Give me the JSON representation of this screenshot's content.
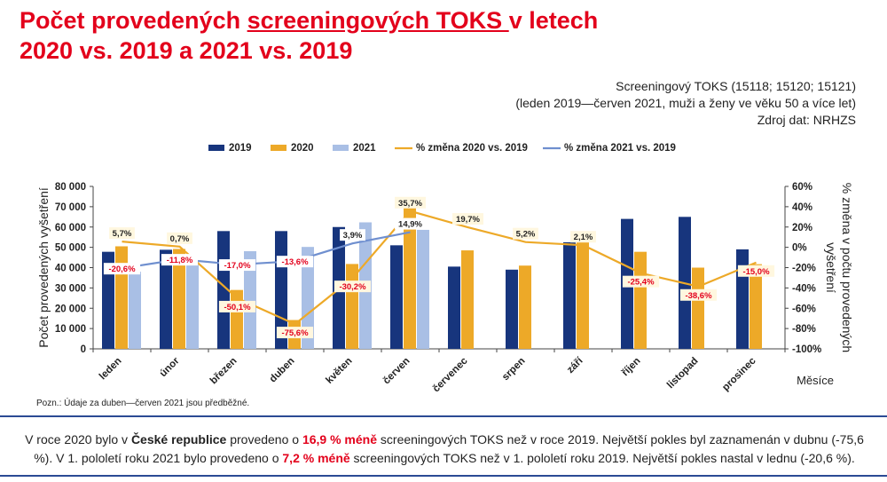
{
  "title": {
    "part1": "Počet provedených ",
    "part2": "screeningových TOKS ",
    "part3": "v letech",
    "line2": "2020 vs. 2019 a 2021 vs. 2019"
  },
  "meta": {
    "line1": "Screeningový TOKS (15118; 15120; 15121)",
    "line2": "(leden 2019—červen 2021, muži a ženy ve věku 50 a více let)",
    "line3": "Zdroj dat: NRHZS"
  },
  "note": "Pozn.: Údaje za duben—červen 2021 jsou předběžné.",
  "summary": {
    "s1": "V roce 2020 bylo v ",
    "s2": "České republice",
    "s3": " provedeno o ",
    "s4": "16,9 % méně",
    "s5": " screeningových TOKS než v roce 2019.  Největší pokles byl zaznamenán v dubnu (-75,6 %). V 1. pololetí roku 2021 bylo provedeno o ",
    "s6": "7,2 % méně",
    "s7": " screeningových TOKS než v 1. pololetí roku 2019. Největší pokles nastal v lednu (-20,6 %)."
  },
  "colors": {
    "bar_2019": "#17357d",
    "bar_2020": "#eda928",
    "bar_2021": "#a9bfe5",
    "line_2020": "#eda928",
    "line_2021": "#6f8fcf",
    "label_red": "#e3001b",
    "title_red": "#e3001b"
  },
  "chart_data": {
    "type": "bar",
    "categories": [
      "leden",
      "únor",
      "březen",
      "duben",
      "květen",
      "červen",
      "červenec",
      "srpen",
      "září",
      "říjen",
      "listopad",
      "prosinec"
    ],
    "xlabel": "Měsíce",
    "ylabel": "Počet provedených vyšetření",
    "y2label": "% změna v počtu provedených vyšetření",
    "ylim": [
      0,
      80000
    ],
    "yticks": [
      "0",
      "10 000",
      "20 000",
      "30 000",
      "40 000",
      "50 000",
      "60 000",
      "70 000",
      "80 000"
    ],
    "y2lim": [
      -100,
      60
    ],
    "y2ticks": [
      "-100%",
      "-80%",
      "-60%",
      "-40%",
      "-20%",
      "0%",
      "20%",
      "40%",
      "60%"
    ],
    "legend_position": "top",
    "series": [
      {
        "name": "2019",
        "kind": "bar",
        "values": [
          47800,
          48800,
          58000,
          58000,
          60000,
          51000,
          40500,
          39000,
          52500,
          64000,
          65000,
          49000
        ]
      },
      {
        "name": "2020",
        "kind": "bar",
        "values": [
          50500,
          49200,
          29000,
          14200,
          41800,
          70000,
          48500,
          41000,
          53600,
          47800,
          40000,
          41700
        ]
      },
      {
        "name": "2021",
        "kind": "bar",
        "values": [
          38000,
          43000,
          48100,
          50200,
          62300,
          58600,
          null,
          null,
          null,
          null,
          null,
          null
        ]
      },
      {
        "name": "% změna 2020 vs. 2019",
        "kind": "line",
        "axis": "right",
        "values": [
          5.7,
          0.7,
          -50.1,
          -75.6,
          -30.2,
          35.7,
          19.7,
          5.2,
          2.1,
          -25.4,
          -38.6,
          -15.0
        ],
        "labels": [
          "5,7%",
          "0,7%",
          "-50,1%",
          "-75,6%",
          "-30,2%",
          "35,7%",
          "19,7%",
          "5,2%",
          "2,1%",
          "-25,4%",
          "-38,6%",
          "-15,0%"
        ]
      },
      {
        "name": "% změna 2021 vs. 2019",
        "kind": "line",
        "axis": "right",
        "values": [
          -20.6,
          -11.8,
          -17.0,
          -13.6,
          3.9,
          14.9,
          null,
          null,
          null,
          null,
          null,
          null
        ],
        "labels": [
          "-20,6%",
          "-11,8%",
          "-17,0%",
          "-13,6%",
          "3,9%",
          "14,9%",
          "",
          "",
          "",
          "",
          "",
          ""
        ]
      }
    ]
  }
}
